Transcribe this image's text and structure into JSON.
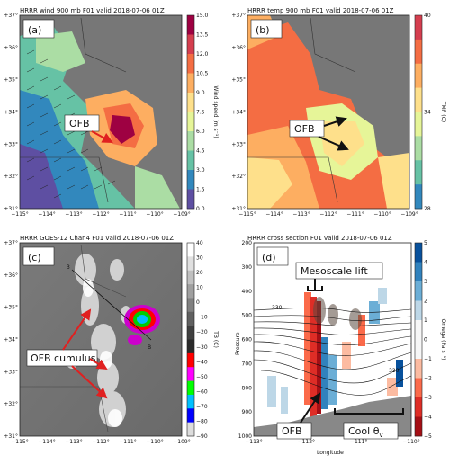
{
  "panels": [
    {
      "letter": "(a)",
      "title": "HRRR wind 900 mb F01 valid 2018-07-06 01Z",
      "y_ticks": [
        "+37°",
        "+36°",
        "+35°",
        "+34°",
        "+33°",
        "+32°",
        "+31°"
      ],
      "x_ticks": [
        "−115°",
        "−114°",
        "−113°",
        "−112°",
        "−111°",
        "−110°",
        "−109°"
      ],
      "callout": "OFB",
      "colorbar": {
        "label": "Wind speed (m s⁻¹)",
        "ticks": [
          "15.0",
          "13.5",
          "12.0",
          "10.5",
          "9.0",
          "7.5",
          "6.0",
          "4.5",
          "3.0",
          "1.5",
          "0.0"
        ],
        "colors": [
          "#9e0142",
          "#d53e4f",
          "#f46d43",
          "#fdae61",
          "#fee08b",
          "#e6f598",
          "#abdda4",
          "#66c2a5",
          "#3288bd",
          "#5e4fa2"
        ]
      }
    },
    {
      "letter": "(b)",
      "title": "HRRR temp 900 mb F01 valid 2018-07-06 01Z",
      "y_ticks": [
        "+37°",
        "+36°",
        "+35°",
        "+34°",
        "+33°",
        "+32°",
        "+31°"
      ],
      "x_ticks": [
        "−115°",
        "−114°",
        "−113°",
        "−112°",
        "−111°",
        "−110°",
        "−109°"
      ],
      "callout": "OFB",
      "colorbar": {
        "label": "TMP (C)",
        "ticks": [
          "40",
          "34",
          "28"
        ],
        "colors": [
          "#d53e4f",
          "#f46d43",
          "#fdae61",
          "#fee08b",
          "#e6f598",
          "#abdda4",
          "#66c2a5",
          "#3288bd"
        ]
      }
    },
    {
      "letter": "(c)",
      "title": "HRRR GOES-12 Chan4 F01 valid 2018-07-06 01Z",
      "y_ticks": [
        "+37°",
        "+36°",
        "+35°",
        "+34°",
        "+33°",
        "+32°",
        "+31°"
      ],
      "x_ticks": [
        "−115°",
        "−114°",
        "−113°",
        "−112°",
        "−111°",
        "−110°",
        "−109°"
      ],
      "callout": "OFB cumulus",
      "map_labels": [
        "3",
        "B"
      ],
      "colorbar": {
        "label": "TB (C)",
        "ticks": [
          "40",
          "30",
          "20",
          "10",
          "0",
          "−10",
          "−20",
          "−30",
          "−40",
          "−50",
          "−60",
          "−70",
          "−80",
          "−90"
        ],
        "colors": [
          "#ffffff",
          "#e0e0e0",
          "#c0c0c0",
          "#a0a0a0",
          "#808080",
          "#606060",
          "#404040",
          "#2a2a2a",
          "#ff0000",
          "#ff00ff",
          "#00ff00",
          "#00c0ff",
          "#0000ff",
          "#dddddd"
        ]
      }
    },
    {
      "letter": "(d)",
      "title": "HRRR cross section F01 valid 2018-07-06 01Z",
      "ylabel": "Pressure",
      "xlabel": "Longitude",
      "y_ticks": [
        "200",
        "300",
        "400",
        "500",
        "600",
        "700",
        "800",
        "900",
        "1000"
      ],
      "x_ticks": [
        "−113°",
        "−112°",
        "−111°",
        "−110°"
      ],
      "contour_labels": [
        "330",
        "320"
      ],
      "callouts": {
        "lift": "Mesoscale lift",
        "ofb": "OFB",
        "cool": "Cool θ"
      },
      "cool_sub": "v",
      "colorbar": {
        "label": "Omega (Pa s⁻¹)",
        "ticks": [
          "5",
          "4",
          "3",
          "2",
          "1",
          "0",
          "−1",
          "−2",
          "−3",
          "−4",
          "−5"
        ],
        "colors": [
          "#08519c",
          "#3182bd",
          "#6baed6",
          "#bdd7e7",
          "#f7f7f7",
          "#f7f7f7",
          "#fcbba1",
          "#fb6a4a",
          "#de2d26",
          "#a50f15"
        ]
      }
    }
  ]
}
